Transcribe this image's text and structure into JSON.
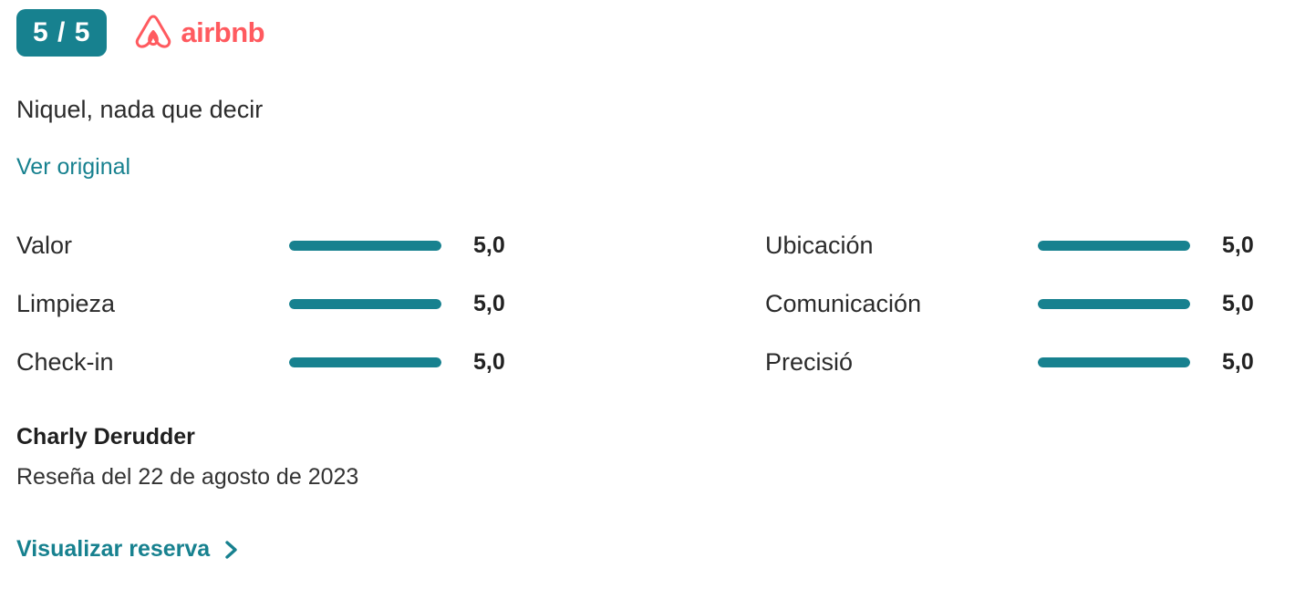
{
  "header": {
    "score_badge": "5 / 5",
    "channel_name": "airbnb",
    "badge_color": "#17818F",
    "brand_color": "#FF5A5F"
  },
  "review": {
    "title": "Niquel, nada que decir",
    "view_original_label": "Ver original"
  },
  "ratings": {
    "bar_color": "#17818F",
    "max_score": 5,
    "columns": [
      {
        "items": [
          {
            "label": "Valor",
            "value": "5,0",
            "percent": 100
          },
          {
            "label": "Limpieza",
            "value": "5,0",
            "percent": 100
          },
          {
            "label": "Check-in",
            "value": "5,0",
            "percent": 100
          }
        ]
      },
      {
        "items": [
          {
            "label": "Ubicación",
            "value": "5,0",
            "percent": 100
          },
          {
            "label": "Comunicación",
            "value": "5,0",
            "percent": 100
          },
          {
            "label": "Precisió",
            "value": "5,0",
            "percent": 100
          }
        ]
      }
    ]
  },
  "reviewer": {
    "name": "Charly Derudder",
    "date_line": "Reseña del 22 de agosto de 2023"
  },
  "footer": {
    "view_booking_label": "Visualizar reserva"
  }
}
